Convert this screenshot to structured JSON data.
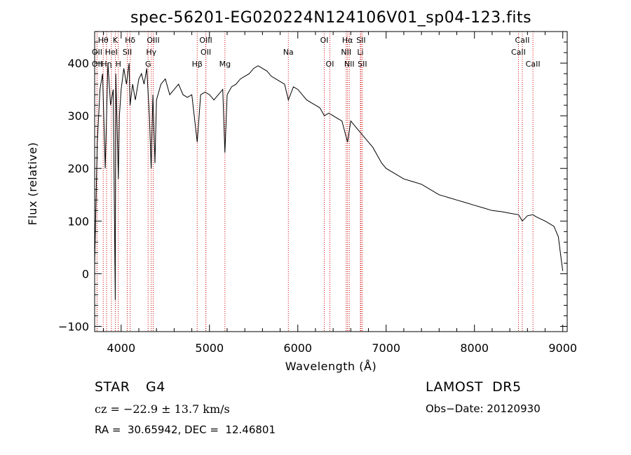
{
  "chart_data": {
    "type": "line",
    "title": "spec-56201-EG020224N124106V01_sp04-123.fits",
    "xlabel": "Wavelength (Å)",
    "ylabel": "Flux (relative)",
    "xlim": [
      3700,
      9050
    ],
    "ylim": [
      -110,
      460
    ],
    "xticks": [
      4000,
      5000,
      6000,
      7000,
      8000,
      9000
    ],
    "yticks": [
      -100,
      0,
      100,
      200,
      300,
      400
    ],
    "grid": false,
    "line_color": "#000000",
    "marker_color": "#cc0000",
    "series": [
      {
        "x": [
          3700,
          3730,
          3760,
          3790,
          3820,
          3850,
          3880,
          3910,
          3933,
          3940,
          3968,
          3980,
          4000,
          4030,
          4060,
          4090,
          4101,
          4130,
          4160,
          4200,
          4230,
          4260,
          4290,
          4320,
          4340,
          4360,
          4383,
          4400,
          4450,
          4500,
          4550,
          4600,
          4650,
          4700,
          4750,
          4800,
          4861,
          4900,
          4950,
          5000,
          5050,
          5100,
          5150,
          5175,
          5200,
          5250,
          5300,
          5350,
          5400,
          5450,
          5500,
          5550,
          5600,
          5650,
          5700,
          5750,
          5800,
          5850,
          5893,
          5950,
          6000,
          6050,
          6100,
          6150,
          6200,
          6250,
          6300,
          6350,
          6400,
          6450,
          6500,
          6563,
          6600,
          6650,
          6700,
          6750,
          6800,
          6850,
          6900,
          6950,
          7000,
          7100,
          7200,
          7300,
          7400,
          7500,
          7600,
          7700,
          7800,
          7900,
          8000,
          8100,
          8200,
          8300,
          8400,
          8500,
          8542,
          8600,
          8662,
          8700,
          8800,
          8850,
          8900,
          8950,
          8980,
          9000
        ],
        "y": [
          20,
          250,
          350,
          380,
          200,
          400,
          320,
          350,
          -50,
          380,
          180,
          300,
          350,
          390,
          360,
          400,
          320,
          360,
          330,
          370,
          380,
          360,
          390,
          300,
          200,
          340,
          210,
          330,
          360,
          370,
          340,
          350,
          360,
          340,
          335,
          340,
          250,
          340,
          345,
          340,
          330,
          340,
          350,
          230,
          340,
          355,
          360,
          370,
          375,
          380,
          390,
          395,
          390,
          385,
          375,
          370,
          365,
          360,
          330,
          355,
          350,
          340,
          330,
          325,
          320,
          315,
          300,
          305,
          300,
          295,
          290,
          250,
          290,
          280,
          270,
          260,
          250,
          240,
          225,
          210,
          200,
          190,
          180,
          175,
          170,
          160,
          150,
          145,
          140,
          135,
          130,
          125,
          120,
          118,
          115,
          112,
          100,
          110,
          112,
          108,
          100,
          95,
          90,
          70,
          30,
          5
        ]
      }
    ],
    "line_markers": [
      {
        "label": "Hθ",
        "x": 3797,
        "row": 1
      },
      {
        "label": "OII",
        "x": 3727,
        "row": 2
      },
      {
        "label": "OII",
        "x": 3727,
        "row": 3
      },
      {
        "label": "K",
        "x": 3934,
        "row": 1
      },
      {
        "label": "HeI",
        "x": 3889,
        "row": 2
      },
      {
        "label": "Hη",
        "x": 3835,
        "row": 3
      },
      {
        "label": "SII",
        "x": 4069,
        "row": 2
      },
      {
        "label": "H",
        "x": 3968,
        "row": 3
      },
      {
        "label": "Hδ",
        "x": 4102,
        "row": 1
      },
      {
        "label": "OIII",
        "x": 4363,
        "row": 1
      },
      {
        "label": "Hγ",
        "x": 4341,
        "row": 2
      },
      {
        "label": "G",
        "x": 4305,
        "row": 3
      },
      {
        "label": "OIII",
        "x": 4959,
        "row": 1
      },
      {
        "label": "OII",
        "x": 4959,
        "row": 2
      },
      {
        "label": "Hβ",
        "x": 4861,
        "row": 3
      },
      {
        "label": "Mg",
        "x": 5175,
        "row": 3
      },
      {
        "label": "Na",
        "x": 5893,
        "row": 2
      },
      {
        "label": "OI",
        "x": 6300,
        "row": 1
      },
      {
        "label": "OI",
        "x": 6363,
        "row": 3
      },
      {
        "label": "Hα",
        "x": 6563,
        "row": 1
      },
      {
        "label": "SII",
        "x": 6716,
        "row": 1
      },
      {
        "label": "NII",
        "x": 6548,
        "row": 2
      },
      {
        "label": "Li",
        "x": 6708,
        "row": 2
      },
      {
        "label": "NII",
        "x": 6583,
        "row": 3
      },
      {
        "label": "SII",
        "x": 6731,
        "row": 3
      },
      {
        "label": "CaII",
        "x": 8542,
        "row": 1
      },
      {
        "label": "CaII",
        "x": 8498,
        "row": 2
      },
      {
        "label": "CaII",
        "x": 8662,
        "row": 3
      }
    ]
  },
  "info": {
    "object_class": "STAR",
    "subclass": "G4",
    "survey": "LAMOST  DR5",
    "cz": "cz = −22.9 ± 13.7 km/s",
    "obs_date": "Obs−Date: 20120930",
    "coords": "RA =  30.65942, DEC =  12.46801"
  }
}
